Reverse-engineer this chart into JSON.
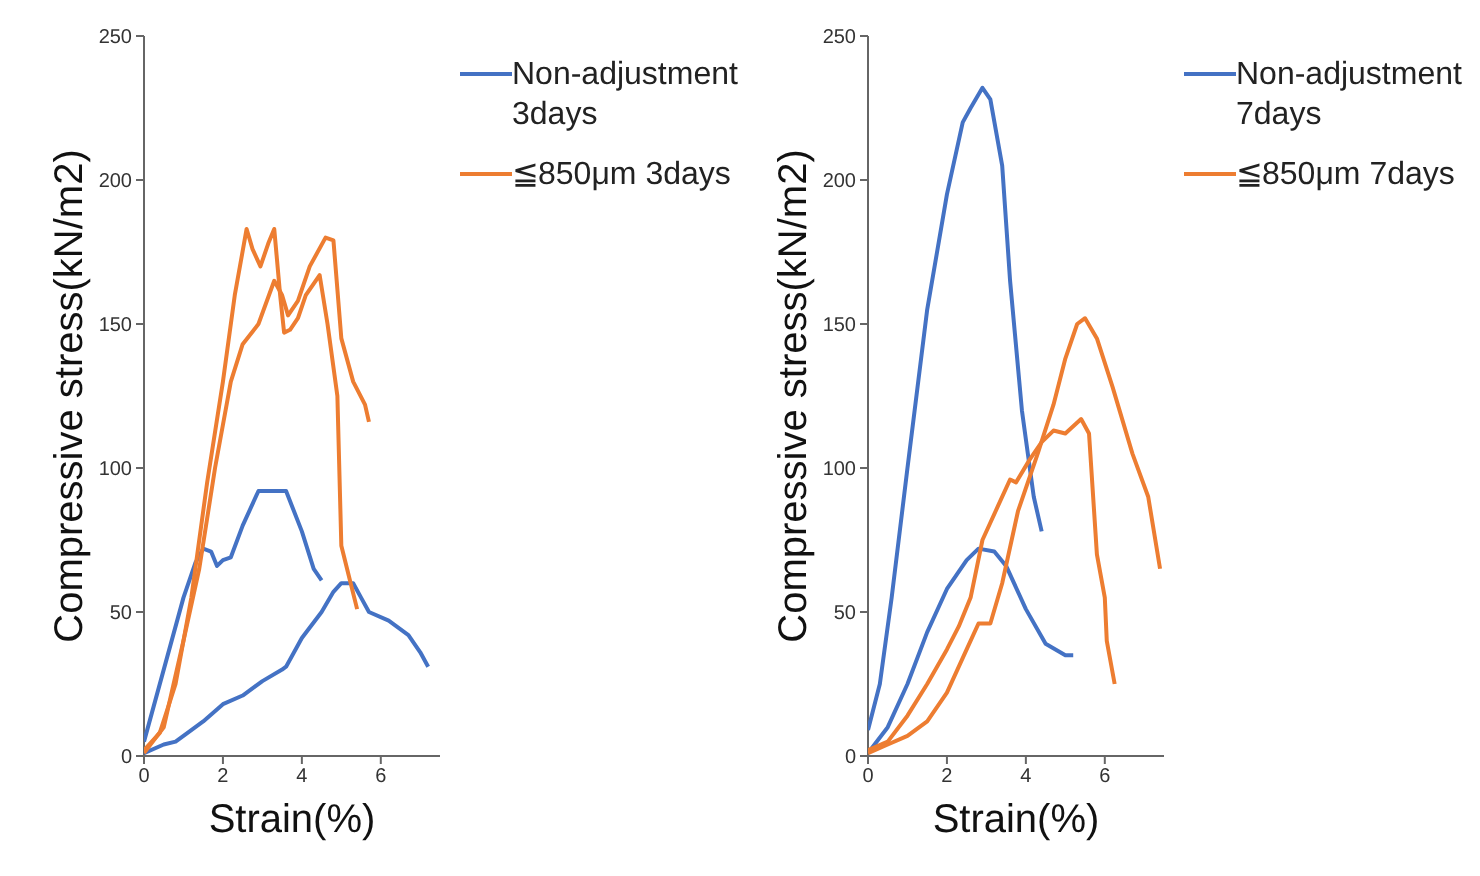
{
  "chart_data": [
    {
      "type": "line",
      "xlabel": "Strain(%)",
      "ylabel": "Compressive stress(kN/m2)",
      "xlim": [
        0,
        7.5
      ],
      "xticks": [
        0,
        2,
        4,
        6
      ],
      "ylim": [
        0,
        250
      ],
      "yticks": [
        0,
        50,
        100,
        150,
        200,
        250
      ],
      "grid": false,
      "legend": "top right",
      "marker": "none",
      "line_style": "solid",
      "series": [
        {
          "name": "Non-adjustment 3days",
          "color": "#4472c4",
          "x": [
            0,
            0.5,
            1,
            1.3,
            1.5,
            1.7,
            1.85,
            2,
            2.2,
            2.5,
            2.9,
            3.2,
            3.6,
            4,
            4.3,
            4.5
          ],
          "values": [
            5,
            30,
            55,
            67,
            72,
            71,
            66,
            68,
            69,
            80,
            92,
            92,
            92,
            78,
            65,
            61
          ]
        },
        {
          "color": "#4472c4",
          "x": [
            0,
            0.5,
            0.8,
            1,
            1.5,
            2,
            2.5,
            3,
            3.5,
            3.6,
            4,
            4.5,
            4.8,
            5,
            5.3,
            5.5,
            5.7,
            6.2,
            6.7,
            7,
            7.2
          ],
          "values": [
            1,
            4,
            5,
            7,
            12,
            18,
            21,
            26,
            30,
            31,
            41,
            50,
            57,
            60,
            60,
            55,
            50,
            47,
            42,
            36,
            31
          ]
        },
        {
          "name": "≦850μm 3days",
          "color": "#ed7d31",
          "x": [
            0,
            0.4,
            0.8,
            1.2,
            1.6,
            2,
            2.3,
            2.6,
            2.75,
            2.95,
            3.15,
            3.3,
            3.45,
            3.55,
            3.7,
            3.9,
            4.1,
            4.45,
            4.65,
            4.9,
            5,
            5.2,
            5.4
          ],
          "values": [
            2,
            8,
            25,
            55,
            95,
            130,
            160,
            183,
            176,
            170,
            178,
            183,
            160,
            147,
            148,
            152,
            160,
            167,
            150,
            125,
            73,
            62,
            51
          ]
        },
        {
          "color": "#ed7d31",
          "x": [
            0,
            0.5,
            1,
            1.4,
            1.8,
            2.2,
            2.5,
            2.9,
            3.3,
            3.5,
            3.65,
            3.9,
            4.2,
            4.6,
            4.8,
            5,
            5.3,
            5.6,
            5.7
          ],
          "values": [
            1,
            10,
            40,
            65,
            100,
            130,
            143,
            150,
            165,
            160,
            153,
            158,
            170,
            180,
            179,
            145,
            130,
            122,
            116
          ]
        }
      ]
    },
    {
      "type": "line",
      "xlabel": "Strain(%)",
      "ylabel": "Compressive stress(kN/m2)",
      "xlim": [
        0,
        7.5
      ],
      "xticks": [
        0,
        2,
        4,
        6
      ],
      "ylim": [
        0,
        250
      ],
      "yticks": [
        0,
        50,
        100,
        150,
        200,
        250
      ],
      "grid": false,
      "legend": "top right",
      "marker": "none",
      "line_style": "solid",
      "series": [
        {
          "name": "Non-adjustment 7days",
          "color": "#4472c4",
          "x": [
            0,
            0.3,
            0.6,
            1,
            1.5,
            2,
            2.4,
            2.6,
            2.9,
            3.1,
            3.4,
            3.6,
            3.9,
            4.2,
            4.4
          ],
          "values": [
            9,
            25,
            55,
            100,
            155,
            195,
            220,
            225,
            232,
            228,
            205,
            165,
            120,
            90,
            78
          ]
        },
        {
          "color": "#4472c4",
          "x": [
            0,
            0.5,
            1,
            1.5,
            2,
            2.5,
            2.8,
            3.2,
            3.5,
            4,
            4.5,
            5,
            5.2
          ],
          "values": [
            1,
            10,
            25,
            43,
            58,
            68,
            72,
            71,
            66,
            51,
            39,
            35,
            35
          ]
        },
        {
          "name": "≦850μm 7days",
          "color": "#ed7d31",
          "x": [
            0,
            0.5,
            1,
            1.5,
            2,
            2.3,
            2.6,
            2.9,
            3.3,
            3.6,
            3.75,
            4.1,
            4.4,
            4.7,
            5,
            5.4,
            5.6,
            5.8,
            6,
            6.05,
            6.25
          ],
          "values": [
            2,
            5,
            14,
            25,
            37,
            45,
            55,
            75,
            87,
            96,
            95,
            103,
            109,
            113,
            112,
            117,
            112,
            70,
            55,
            40,
            25
          ]
        },
        {
          "color": "#ed7d31",
          "x": [
            0,
            0.5,
            1,
            1.5,
            2,
            2.5,
            2.8,
            3.1,
            3.4,
            3.8,
            4.3,
            4.7,
            5,
            5.3,
            5.5,
            5.8,
            6.2,
            6.7,
            7.1,
            7.4
          ],
          "values": [
            1,
            4,
            7,
            12,
            22,
            37,
            46,
            46,
            60,
            85,
            105,
            122,
            138,
            150,
            152,
            145,
            128,
            105,
            90,
            65
          ]
        }
      ]
    }
  ]
}
